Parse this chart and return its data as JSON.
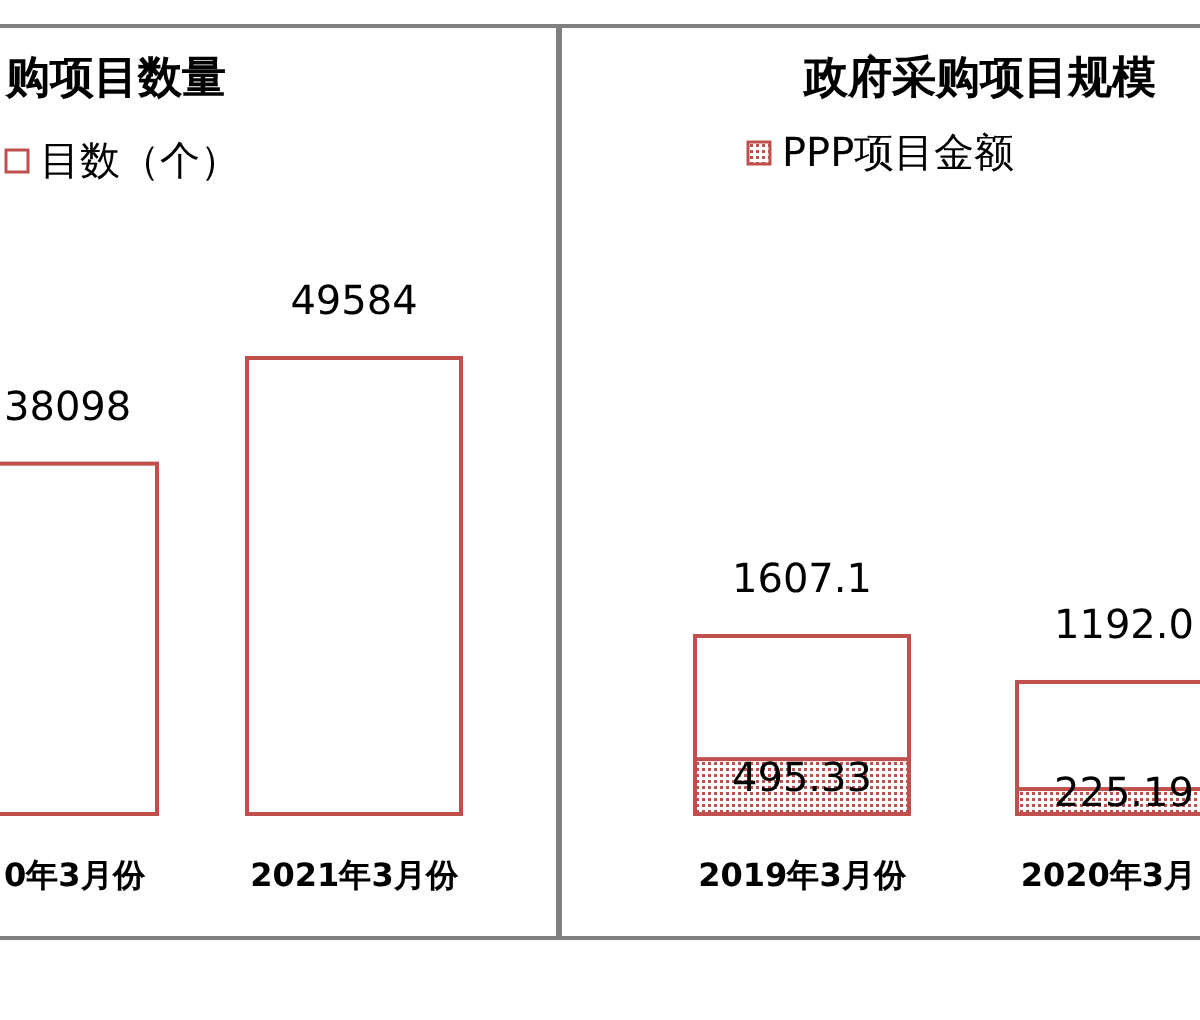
{
  "chart_data": [
    {
      "type": "bar",
      "title": "购项目数量",
      "categories": [
        "0年3月份",
        "2021年3月份"
      ],
      "series": [
        {
          "name": "目数（个）",
          "color": "#c0504d",
          "values": [
            38098,
            49584
          ]
        }
      ],
      "data_labels": true,
      "legend": "top"
    },
    {
      "type": "bar",
      "title": "政府采购项目规模",
      "categories": [
        "2019年3月份",
        "2020年3月"
      ],
      "series": [
        {
          "color": "#c0504d",
          "values": [
            1607.1,
            1192.0
          ],
          "value_labels": [
            "1607.1",
            "1192.0"
          ]
        },
        {
          "name": "PPP项目金额",
          "color": "#c0504d",
          "values": [
            495.33,
            225.19
          ]
        }
      ],
      "data_labels": true,
      "legend": "top"
    }
  ]
}
